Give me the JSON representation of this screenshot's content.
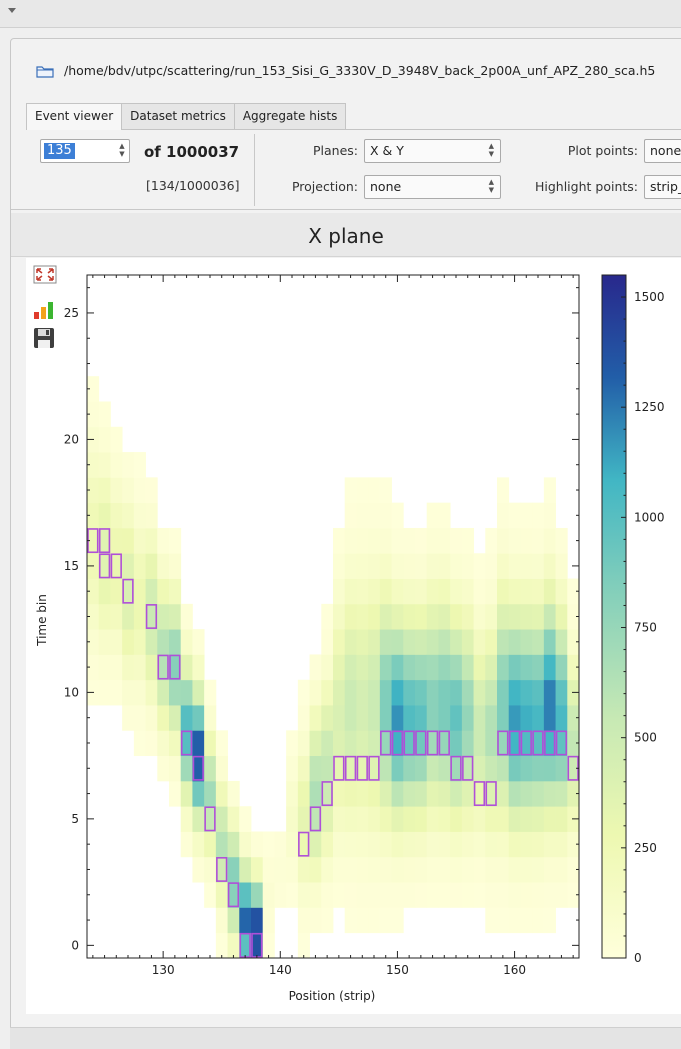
{
  "file_path": "/home/bdv/utpc/scattering/run_153_Sisi_G_3330V_D_3948V_back_2p00A_unf_APZ_280_sca.h5",
  "tabs": [
    {
      "label": "Event viewer",
      "active": true
    },
    {
      "label": "Dataset metrics",
      "active": false
    },
    {
      "label": "Aggregate hists",
      "active": false
    }
  ],
  "event": {
    "current": "135",
    "of_label": "of 1000037",
    "index_label": "[134/1000036]"
  },
  "controls": {
    "planes_label": "Planes:",
    "planes_value": "X & Y",
    "projection_label": "Projection:",
    "projection_value": "none",
    "plot_points_label": "Plot points:",
    "plot_points_value": "none",
    "highlight_points_label": "Highlight points:",
    "highlight_points_value": "strip_"
  },
  "plot": {
    "title": "X plane",
    "toolbar_icons": [
      "fit-zoom-icon",
      "bar-color-icon",
      "save-icon"
    ]
  },
  "chart_data": {
    "type": "heatmap",
    "title": "X plane",
    "xlabel": "Position (strip)",
    "ylabel": "Time bin",
    "xlim": [
      123.5,
      165.5
    ],
    "ylim": [
      -0.5,
      26.5
    ],
    "xticks": [
      130,
      140,
      150,
      160
    ],
    "yticks": [
      0,
      5,
      10,
      15,
      20,
      25
    ],
    "colorbar": {
      "min": 0,
      "max": 1550,
      "ticks": [
        0,
        250,
        500,
        750,
        1000,
        1250,
        1500
      ]
    },
    "colors": {
      "low": "#ffffdb",
      "mid1": "#c7e9b4",
      "mid2": "#41b6c4",
      "high": "#2c2a8f"
    },
    "highlight_color": "#b04fd8",
    "highlighted_cells": [
      [
        124,
        16
      ],
      [
        125,
        16
      ],
      [
        125,
        15
      ],
      [
        126,
        15
      ],
      [
        127,
        14
      ],
      [
        129,
        13
      ],
      [
        130,
        11
      ],
      [
        131,
        11
      ],
      [
        132,
        8
      ],
      [
        133,
        7
      ],
      [
        134,
        5
      ],
      [
        135,
        3
      ],
      [
        136,
        2
      ],
      [
        137,
        0
      ],
      [
        138,
        0
      ],
      [
        142,
        4
      ],
      [
        143,
        5
      ],
      [
        144,
        6
      ],
      [
        145,
        7
      ],
      [
        146,
        7
      ],
      [
        147,
        7
      ],
      [
        148,
        7
      ],
      [
        149,
        8
      ],
      [
        150,
        8
      ],
      [
        151,
        8
      ],
      [
        152,
        8
      ],
      [
        153,
        8
      ],
      [
        154,
        8
      ],
      [
        155,
        7
      ],
      [
        156,
        7
      ],
      [
        157,
        6
      ],
      [
        158,
        6
      ],
      [
        159,
        8
      ],
      [
        160,
        8
      ],
      [
        161,
        8
      ],
      [
        162,
        8
      ],
      [
        163,
        8
      ],
      [
        164,
        8
      ],
      [
        165,
        7
      ]
    ],
    "columns": [
      {
        "x": 124,
        "center": 16,
        "peak": 260,
        "spread": 3.5
      },
      {
        "x": 125,
        "center": 15.5,
        "peak": 380,
        "spread": 3.2
      },
      {
        "x": 126,
        "center": 15,
        "peak": 300,
        "spread": 3.0
      },
      {
        "x": 127,
        "center": 14,
        "peak": 420,
        "spread": 3.0
      },
      {
        "x": 128,
        "center": 13.5,
        "peak": 280,
        "spread": 3.0
      },
      {
        "x": 129,
        "center": 13,
        "peak": 520,
        "spread": 2.8
      },
      {
        "x": 130,
        "center": 11.5,
        "peak": 640,
        "spread": 2.6
      },
      {
        "x": 131,
        "center": 11,
        "peak": 820,
        "spread": 2.5
      },
      {
        "x": 132,
        "center": 8.5,
        "peak": 1050,
        "spread": 2.4
      },
      {
        "x": 133,
        "center": 7.5,
        "peak": 1380,
        "spread": 2.3
      },
      {
        "x": 134,
        "center": 6,
        "peak": 700,
        "spread": 2.0
      },
      {
        "x": 135,
        "center": 4,
        "peak": 620,
        "spread": 2.0
      },
      {
        "x": 136,
        "center": 2.5,
        "peak": 860,
        "spread": 2.0
      },
      {
        "x": 137,
        "center": 1,
        "peak": 1300,
        "spread": 1.9
      },
      {
        "x": 138,
        "center": 0.5,
        "peak": 1480,
        "spread": 1.8
      },
      {
        "x": 139,
        "center": 2,
        "peak": 60,
        "spread": 1.5
      },
      {
        "x": 140,
        "center": 3,
        "peak": 40,
        "spread": 1.5
      },
      {
        "x": 141,
        "center": 5,
        "peak": 120,
        "spread": 2.0
      },
      {
        "x": 142,
        "center": 5,
        "peak": 330,
        "spread": 2.6
      },
      {
        "x": 143,
        "center": 6,
        "peak": 650,
        "spread": 2.8
      },
      {
        "x": 144,
        "center": 7,
        "peak": 560,
        "spread": 3.0
      },
      {
        "x": 145,
        "center": 9,
        "peak": 420,
        "spread": 4.0
      },
      {
        "x": 146,
        "center": 9.5,
        "peak": 520,
        "spread": 4.2
      },
      {
        "x": 147,
        "center": 9.5,
        "peak": 460,
        "spread": 4.4
      },
      {
        "x": 148,
        "center": 9.5,
        "peak": 520,
        "spread": 4.4
      },
      {
        "x": 149,
        "center": 9.5,
        "peak": 860,
        "spread": 4.0
      },
      {
        "x": 150,
        "center": 9,
        "peak": 1180,
        "spread": 3.6
      },
      {
        "x": 151,
        "center": 9,
        "peak": 1020,
        "spread": 3.6
      },
      {
        "x": 152,
        "center": 9,
        "peak": 980,
        "spread": 3.6
      },
      {
        "x": 153,
        "center": 9.5,
        "peak": 820,
        "spread": 3.8
      },
      {
        "x": 154,
        "center": 9.5,
        "peak": 880,
        "spread": 3.8
      },
      {
        "x": 155,
        "center": 9,
        "peak": 960,
        "spread": 3.6
      },
      {
        "x": 156,
        "center": 9,
        "peak": 760,
        "spread": 3.6
      },
      {
        "x": 157,
        "center": 8.5,
        "peak": 520,
        "spread": 3.4
      },
      {
        "x": 158,
        "center": 8.5,
        "peak": 640,
        "spread": 3.6
      },
      {
        "x": 159,
        "center": 9.5,
        "peak": 860,
        "spread": 4.0
      },
      {
        "x": 160,
        "center": 9,
        "peak": 1160,
        "spread": 3.8
      },
      {
        "x": 161,
        "center": 9,
        "peak": 1100,
        "spread": 3.8
      },
      {
        "x": 162,
        "center": 9,
        "peak": 1060,
        "spread": 3.8
      },
      {
        "x": 163,
        "center": 9.5,
        "peak": 1250,
        "spread": 3.8
      },
      {
        "x": 164,
        "center": 9,
        "peak": 1050,
        "spread": 3.6
      },
      {
        "x": 165,
        "center": 8,
        "peak": 560,
        "spread": 3.0
      }
    ]
  }
}
